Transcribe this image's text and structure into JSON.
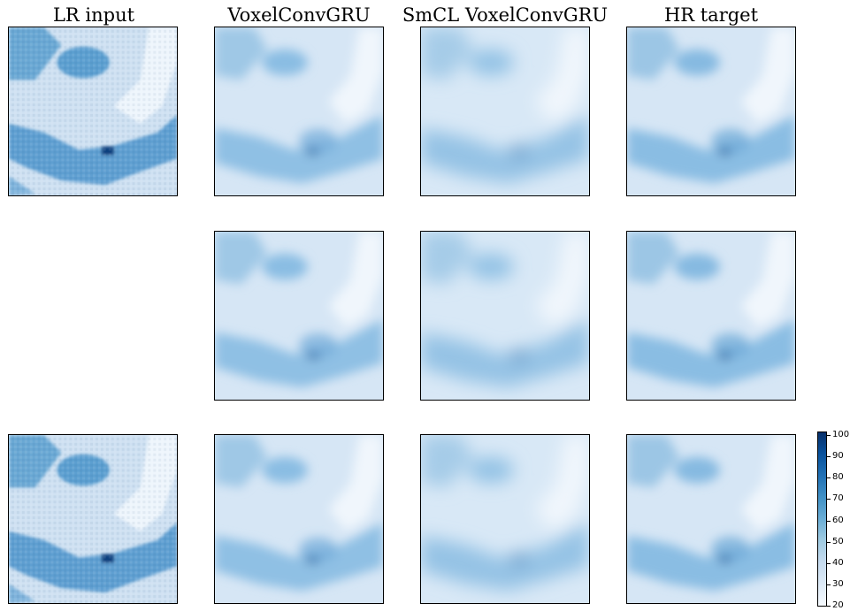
{
  "columns": [
    {
      "title": "LR input"
    },
    {
      "title": "VoxelConvGRU"
    },
    {
      "title": "SmCL VoxelConvGRU"
    },
    {
      "title": "HR target"
    }
  ],
  "rows": [
    {
      "panels": [
        "LR",
        "SR",
        "SR",
        "HR"
      ]
    },
    {
      "panels": [
        "",
        "SR",
        "SR",
        "HR"
      ]
    },
    {
      "panels": [
        "LR",
        "SR",
        "SR",
        "HR"
      ]
    }
  ],
  "colorbar": {
    "colormap": "Blues",
    "range": [
      20,
      100
    ],
    "tick_labels": [
      "100",
      "90",
      "80",
      "70",
      "60",
      "50",
      "40",
      "30",
      "20"
    ]
  }
}
